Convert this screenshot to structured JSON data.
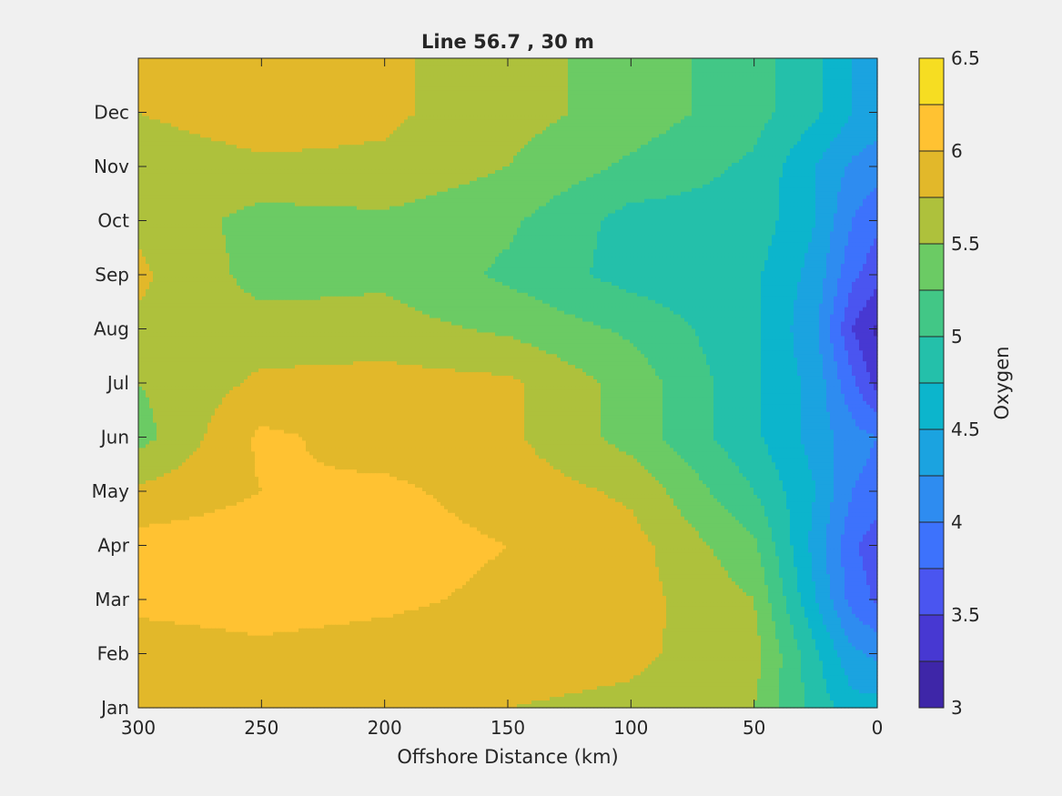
{
  "chart_data": {
    "type": "contourf",
    "title": "Line 56.7 , 30 m",
    "xlabel": "Offshore Distance (km)",
    "ylabel": "",
    "colorbar_label": "Oxygen",
    "xlim": [
      300,
      0
    ],
    "x_ticks": [
      300,
      250,
      200,
      150,
      100,
      50,
      0
    ],
    "y_ticks": [
      "Jan",
      "Feb",
      "Mar",
      "Apr",
      "May",
      "Jun",
      "Jul",
      "Aug",
      "Sep",
      "Oct",
      "Nov",
      "Dec"
    ],
    "colorbar_ticks": [
      3,
      3.5,
      4,
      4.5,
      5,
      5.5,
      6,
      6.5
    ],
    "levels": [
      3,
      3.25,
      3.5,
      3.75,
      4,
      4.25,
      4.5,
      4.75,
      5,
      5.25,
      5.5,
      5.75,
      6,
      6.25,
      6.5
    ],
    "level_colors": [
      "#3e26a8",
      "#4738d2",
      "#4a55f0",
      "#3d72fc",
      "#2e8cf0",
      "#1ba3e0",
      "#0cb5cc",
      "#24c0aa",
      "#42c786",
      "#6bcb64",
      "#aec13c",
      "#e2b82a",
      "#ffc232",
      "#f6dd22"
    ],
    "grid": false,
    "colorbar": "right",
    "x_distance_km": [
      300,
      250,
      200,
      150,
      100,
      50,
      25,
      10,
      0
    ],
    "oxygen_by_month": [
      {
        "month": "Jan",
        "values": [
          5.8,
          5.85,
          5.8,
          5.75,
          5.7,
          5.5,
          4.9,
          4.6,
          4.6
        ]
      },
      {
        "month": "Feb",
        "values": [
          5.9,
          5.95,
          5.9,
          5.85,
          5.8,
          5.6,
          4.8,
          4.3,
          4.2
        ]
      },
      {
        "month": "Mar",
        "values": [
          6.05,
          6.1,
          6.05,
          5.95,
          5.85,
          5.5,
          4.5,
          3.9,
          3.7
        ]
      },
      {
        "month": "Apr",
        "values": [
          6.1,
          6.15,
          6.1,
          6.0,
          5.85,
          5.3,
          4.4,
          3.8,
          3.6
        ]
      },
      {
        "month": "May",
        "values": [
          5.8,
          6.0,
          6.05,
          5.9,
          5.7,
          5.0,
          4.5,
          4.0,
          3.9
        ]
      },
      {
        "month": "Jun",
        "values": [
          5.4,
          6.05,
          5.9,
          5.8,
          5.4,
          4.8,
          4.4,
          4.1,
          4.0
        ]
      },
      {
        "month": "Jul",
        "values": [
          5.5,
          5.8,
          5.85,
          5.8,
          5.4,
          4.8,
          4.4,
          3.8,
          3.4
        ]
      },
      {
        "month": "Aug",
        "values": [
          5.7,
          5.6,
          5.6,
          5.45,
          5.2,
          4.8,
          4.3,
          3.5,
          3.2
        ]
      },
      {
        "month": "Sep",
        "values": [
          5.8,
          5.4,
          5.45,
          5.2,
          4.9,
          4.8,
          4.4,
          3.8,
          3.6
        ]
      },
      {
        "month": "Oct",
        "values": [
          5.7,
          5.4,
          5.45,
          5.3,
          4.9,
          4.9,
          4.5,
          4.0,
          3.8
        ]
      },
      {
        "month": "Nov",
        "values": [
          5.6,
          5.7,
          5.7,
          5.5,
          5.2,
          4.95,
          4.5,
          4.2,
          4.1
        ]
      },
      {
        "month": "Dec",
        "values": [
          5.75,
          5.9,
          5.8,
          5.6,
          5.4,
          5.1,
          4.8,
          4.5,
          4.4
        ]
      }
    ]
  }
}
